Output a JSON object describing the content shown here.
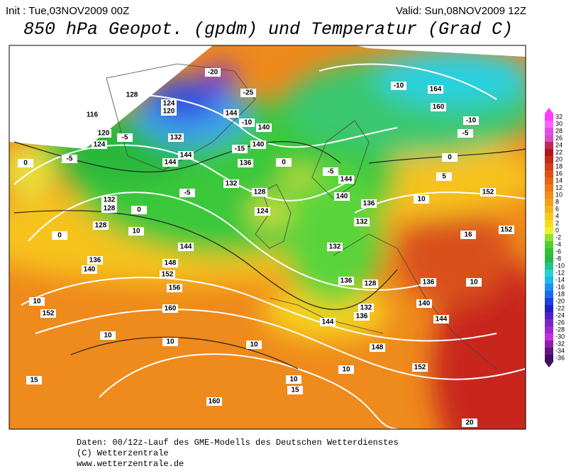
{
  "header": {
    "init": "Init : Tue,03NOV2009 00Z",
    "valid": "Valid: Sun,08NOV2009 12Z",
    "title": "850 hPa Geopot. (gpdm) und Temperatur (Grad C)"
  },
  "map": {
    "contour_labels": [
      "128",
      "116",
      "124",
      "120",
      "120",
      "-5",
      "132",
      "124",
      "-5",
      "144",
      "144",
      "0",
      "0",
      "136",
      "144",
      "-5",
      "132",
      "128",
      "-5",
      "140",
      "132",
      "128",
      "0",
      "124",
      "128",
      "10",
      "0",
      "144",
      "132",
      "136",
      "140",
      "148",
      "152",
      "156",
      "10",
      "152",
      "160",
      "10",
      "10",
      "10",
      "144",
      "148",
      "10",
      "152",
      "15",
      "10",
      "15",
      "160",
      "20",
      "164",
      "160",
      "-10",
      "-10",
      "-5",
      "0",
      "5",
      "152",
      "10",
      "16",
      "152",
      "136",
      "132",
      "136",
      "128",
      "136",
      "140",
      "144",
      "132",
      "136",
      "10",
      "-20",
      "-25",
      "144",
      "-10",
      "140",
      "140",
      "-15"
    ]
  },
  "colorbar": {
    "labels": [
      "32",
      "30",
      "28",
      "26",
      "24",
      "22",
      "20",
      "18",
      "16",
      "14",
      "12",
      "10",
      "8",
      "6",
      "4",
      "2",
      "0",
      "-2",
      "-4",
      "-6",
      "-8",
      "-10",
      "-12",
      "-14",
      "-16",
      "-18",
      "-20",
      "-22",
      "-24",
      "-26",
      "-28",
      "-30",
      "-32",
      "-34",
      "-36"
    ]
  },
  "footer": {
    "line1": "Daten: 00/12z-Lauf des GME-Modells des Deutschen Wetterdienstes",
    "line2": "(C) Wetterzentrale",
    "line3": "www.wetterzentrale.de"
  }
}
